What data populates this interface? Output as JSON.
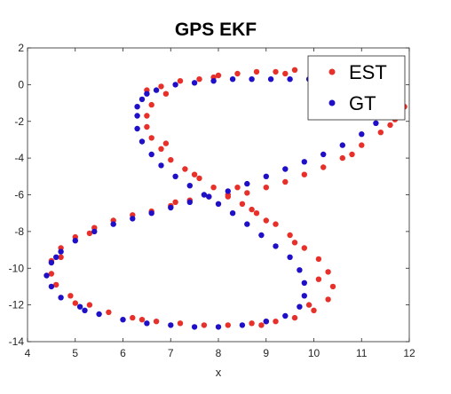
{
  "chart_data": {
    "type": "scatter",
    "title": "GPS EKF",
    "xlabel": "x",
    "ylabel": "",
    "xlim": [
      4,
      12
    ],
    "ylim": [
      -14,
      2
    ],
    "xticks": [
      4,
      5,
      6,
      7,
      8,
      9,
      10,
      11,
      12
    ],
    "yticks": [
      -14,
      -12,
      -10,
      -8,
      -6,
      -4,
      -2,
      0,
      2
    ],
    "grid": false,
    "legend_position": "top-right",
    "series": [
      {
        "name": "EST",
        "color": "#e8302a",
        "points": [
          [
            6.5,
            -0.3
          ],
          [
            6.8,
            -0.1
          ],
          [
            7.2,
            0.2
          ],
          [
            7.6,
            0.3
          ],
          [
            8.0,
            0.5
          ],
          [
            8.4,
            0.6
          ],
          [
            8.8,
            0.7
          ],
          [
            9.2,
            0.7
          ],
          [
            9.6,
            0.8
          ],
          [
            10.0,
            0.8
          ],
          [
            10.4,
            0.7
          ],
          [
            10.8,
            0.6
          ],
          [
            11.2,
            0.3
          ],
          [
            11.5,
            -0.1
          ],
          [
            11.8,
            -0.7
          ],
          [
            11.9,
            -1.2
          ],
          [
            11.7,
            -1.9
          ],
          [
            11.4,
            -2.6
          ],
          [
            11.0,
            -3.3
          ],
          [
            10.6,
            -4.0
          ],
          [
            10.2,
            -4.5
          ],
          [
            9.8,
            -4.9
          ],
          [
            9.4,
            -5.3
          ],
          [
            9.0,
            -5.6
          ],
          [
            8.6,
            -5.9
          ],
          [
            8.2,
            -6.0
          ],
          [
            7.8,
            -6.1
          ],
          [
            7.4,
            -6.3
          ],
          [
            7.0,
            -6.6
          ],
          [
            6.6,
            -6.9
          ],
          [
            6.2,
            -7.1
          ],
          [
            5.8,
            -7.4
          ],
          [
            5.4,
            -7.8
          ],
          [
            5.0,
            -8.3
          ],
          [
            4.7,
            -8.9
          ],
          [
            4.5,
            -9.6
          ],
          [
            4.5,
            -10.3
          ],
          [
            4.6,
            -10.9
          ],
          [
            4.9,
            -11.5
          ],
          [
            5.3,
            -12.0
          ],
          [
            5.7,
            -12.4
          ],
          [
            6.2,
            -12.7
          ],
          [
            6.7,
            -12.9
          ],
          [
            7.2,
            -13.0
          ],
          [
            7.7,
            -13.1
          ],
          [
            8.2,
            -13.1
          ],
          [
            8.7,
            -13.0
          ],
          [
            9.2,
            -12.9
          ],
          [
            9.6,
            -12.7
          ],
          [
            10.0,
            -12.3
          ],
          [
            10.3,
            -11.7
          ],
          [
            10.4,
            -11.0
          ],
          [
            10.3,
            -10.2
          ],
          [
            10.1,
            -9.5
          ],
          [
            9.8,
            -8.9
          ],
          [
            9.5,
            -8.2
          ],
          [
            9.2,
            -7.6
          ],
          [
            8.8,
            -7.0
          ],
          [
            8.5,
            -6.5
          ],
          [
            8.2,
            -6.1
          ],
          [
            7.9,
            -5.6
          ],
          [
            7.6,
            -5.1
          ],
          [
            7.3,
            -4.6
          ],
          [
            7.0,
            -4.1
          ],
          [
            6.8,
            -3.5
          ],
          [
            6.6,
            -2.9
          ],
          [
            6.5,
            -2.3
          ],
          [
            6.5,
            -1.7
          ],
          [
            6.6,
            -1.1
          ],
          [
            6.9,
            -0.5
          ],
          [
            9.0,
            -7.4
          ],
          [
            9.6,
            -8.6
          ],
          [
            10.1,
            -10.6
          ],
          [
            9.9,
            -12.0
          ],
          [
            9.0,
            -12.9
          ],
          [
            5.0,
            -11.9
          ],
          [
            4.7,
            -9.4
          ],
          [
            5.3,
            -8.1
          ],
          [
            7.1,
            -6.4
          ],
          [
            8.4,
            -5.6
          ],
          [
            10.8,
            -3.8
          ],
          [
            11.6,
            -2.2
          ],
          [
            11.0,
            0.5
          ],
          [
            9.4,
            0.6
          ],
          [
            7.9,
            0.4
          ],
          [
            6.9,
            -3.2
          ],
          [
            7.5,
            -4.9
          ],
          [
            8.7,
            -6.8
          ],
          [
            6.4,
            -12.8
          ],
          [
            8.9,
            -13.1
          ]
        ]
      },
      {
        "name": "GT",
        "color": "#1f10c8",
        "points": [
          [
            6.4,
            -0.8
          ],
          [
            6.7,
            -0.3
          ],
          [
            7.1,
            0.0
          ],
          [
            7.5,
            0.1
          ],
          [
            7.9,
            0.2
          ],
          [
            8.3,
            0.3
          ],
          [
            8.7,
            0.3
          ],
          [
            9.1,
            0.3
          ],
          [
            9.5,
            0.3
          ],
          [
            9.9,
            0.3
          ],
          [
            10.3,
            0.3
          ],
          [
            10.7,
            0.2
          ],
          [
            11.1,
            0.0
          ],
          [
            11.4,
            -0.4
          ],
          [
            11.6,
            -0.9
          ],
          [
            11.5,
            -1.5
          ],
          [
            11.3,
            -2.1
          ],
          [
            11.0,
            -2.7
          ],
          [
            10.6,
            -3.3
          ],
          [
            10.2,
            -3.8
          ],
          [
            9.8,
            -4.2
          ],
          [
            9.4,
            -4.6
          ],
          [
            9.0,
            -5.0
          ],
          [
            8.6,
            -5.4
          ],
          [
            8.2,
            -5.8
          ],
          [
            7.8,
            -6.1
          ],
          [
            7.4,
            -6.4
          ],
          [
            7.0,
            -6.7
          ],
          [
            6.6,
            -7.0
          ],
          [
            6.2,
            -7.3
          ],
          [
            5.8,
            -7.6
          ],
          [
            5.4,
            -8.0
          ],
          [
            5.0,
            -8.5
          ],
          [
            4.7,
            -9.1
          ],
          [
            4.5,
            -9.7
          ],
          [
            4.4,
            -10.4
          ],
          [
            4.5,
            -11.0
          ],
          [
            4.7,
            -11.6
          ],
          [
            5.1,
            -12.1
          ],
          [
            5.5,
            -12.5
          ],
          [
            6.0,
            -12.8
          ],
          [
            6.5,
            -13.0
          ],
          [
            7.0,
            -13.1
          ],
          [
            7.5,
            -13.2
          ],
          [
            8.0,
            -13.2
          ],
          [
            8.5,
            -13.1
          ],
          [
            9.0,
            -12.9
          ],
          [
            9.4,
            -12.6
          ],
          [
            9.7,
            -12.1
          ],
          [
            9.8,
            -11.5
          ],
          [
            9.8,
            -10.8
          ],
          [
            9.7,
            -10.1
          ],
          [
            9.5,
            -9.4
          ],
          [
            9.2,
            -8.8
          ],
          [
            8.9,
            -8.2
          ],
          [
            8.6,
            -7.6
          ],
          [
            8.3,
            -7.0
          ],
          [
            8.0,
            -6.5
          ],
          [
            7.7,
            -6.0
          ],
          [
            7.4,
            -5.5
          ],
          [
            7.1,
            -5.0
          ],
          [
            6.8,
            -4.4
          ],
          [
            6.6,
            -3.8
          ],
          [
            6.4,
            -3.1
          ],
          [
            6.3,
            -2.4
          ],
          [
            6.3,
            -1.7
          ],
          [
            6.3,
            -1.2
          ],
          [
            6.5,
            -0.5
          ],
          [
            5.2,
            -12.3
          ],
          [
            4.6,
            -9.4
          ]
        ]
      }
    ]
  }
}
